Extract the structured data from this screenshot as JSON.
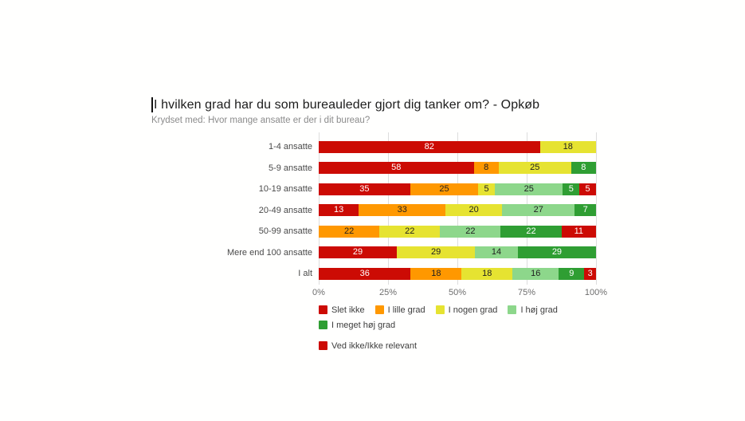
{
  "header": {
    "title": "I hvilken grad har du som bureauleder gjort dig tanker om? - Opkøb",
    "subtitle": "Krydset med: Hvor mange ansatte er der i dit bureau?"
  },
  "colors": {
    "red": "#cc0b04",
    "orange": "#ff9800",
    "yellow": "#e6e331",
    "light_green": "#8dd78b",
    "dark_green": "#2f9e33",
    "gridline": "#dddddd",
    "label_dark": "#212121",
    "label_light": "#ffffff"
  },
  "chart_data": {
    "type": "bar",
    "orientation": "horizontal",
    "stacked": true,
    "percent_stacked": true,
    "grid": true,
    "legend_position": "bottom",
    "xlim": [
      0,
      100
    ],
    "x_ticks": [
      "0%",
      "25%",
      "50%",
      "75%",
      "100%"
    ],
    "categories": [
      "1-4 ansatte",
      "5-9 ansatte",
      "10-19 ansatte",
      "20-49 ansatte",
      "50-99 ansatte",
      "Mere end 100 ansatte",
      "I alt"
    ],
    "series": [
      {
        "name": "Slet ikke",
        "color": "#cc0b04",
        "text_color": "#ffffff",
        "values": [
          82,
          58,
          35,
          13,
          0,
          29,
          36
        ]
      },
      {
        "name": "I lille grad",
        "color": "#ff9800",
        "text_color": "#212121",
        "values": [
          0,
          8,
          25,
          33,
          22,
          0,
          18
        ]
      },
      {
        "name": "I nogen grad",
        "color": "#e6e331",
        "text_color": "#212121",
        "values": [
          18,
          25,
          5,
          20,
          22,
          29,
          18
        ]
      },
      {
        "name": "I høj grad",
        "color": "#8dd78b",
        "text_color": "#212121",
        "values": [
          0,
          0,
          25,
          27,
          22,
          14,
          16
        ]
      },
      {
        "name": "I meget høj grad",
        "color": "#2f9e33",
        "text_color": "#ffffff",
        "values": [
          0,
          8,
          5,
          7,
          22,
          29,
          9
        ]
      },
      {
        "name": "Ved ikke/Ikke relevant",
        "color": "#cc0b04",
        "text_color": "#ffffff",
        "values": [
          0,
          0,
          5,
          0,
          11,
          0,
          3
        ]
      }
    ],
    "legend_wrap_after_index": 4
  }
}
